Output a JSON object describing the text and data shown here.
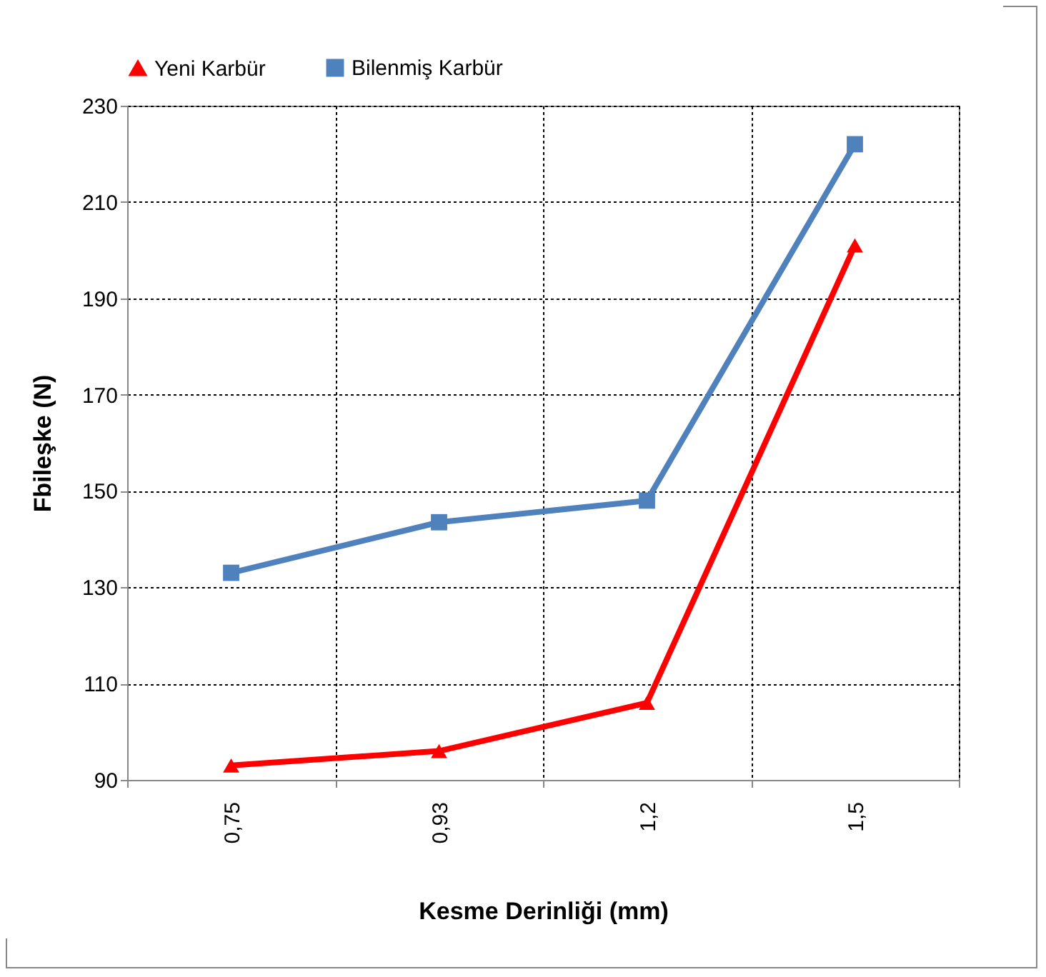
{
  "chart_data": {
    "type": "line",
    "xlabel": "Kesme Derinliği (mm)",
    "ylabel": "Fbileşke (N)",
    "categories": [
      "0,75",
      "0,93",
      "1,2",
      "1,5"
    ],
    "series": [
      {
        "name": "Yeni Karbür",
        "color": "#ff0000",
        "marker": "triangle",
        "values": [
          93,
          96,
          106,
          201
        ]
      },
      {
        "name": "Bilenmiş Karbür",
        "color": "#4f81bd",
        "marker": "square",
        "values": [
          133,
          143.5,
          148,
          222
        ]
      }
    ],
    "ylim": [
      90,
      230
    ],
    "yticks": [
      90,
      110,
      130,
      150,
      170,
      190,
      210,
      230
    ],
    "grid": true,
    "legend": "top",
    "line_style": "solid"
  }
}
